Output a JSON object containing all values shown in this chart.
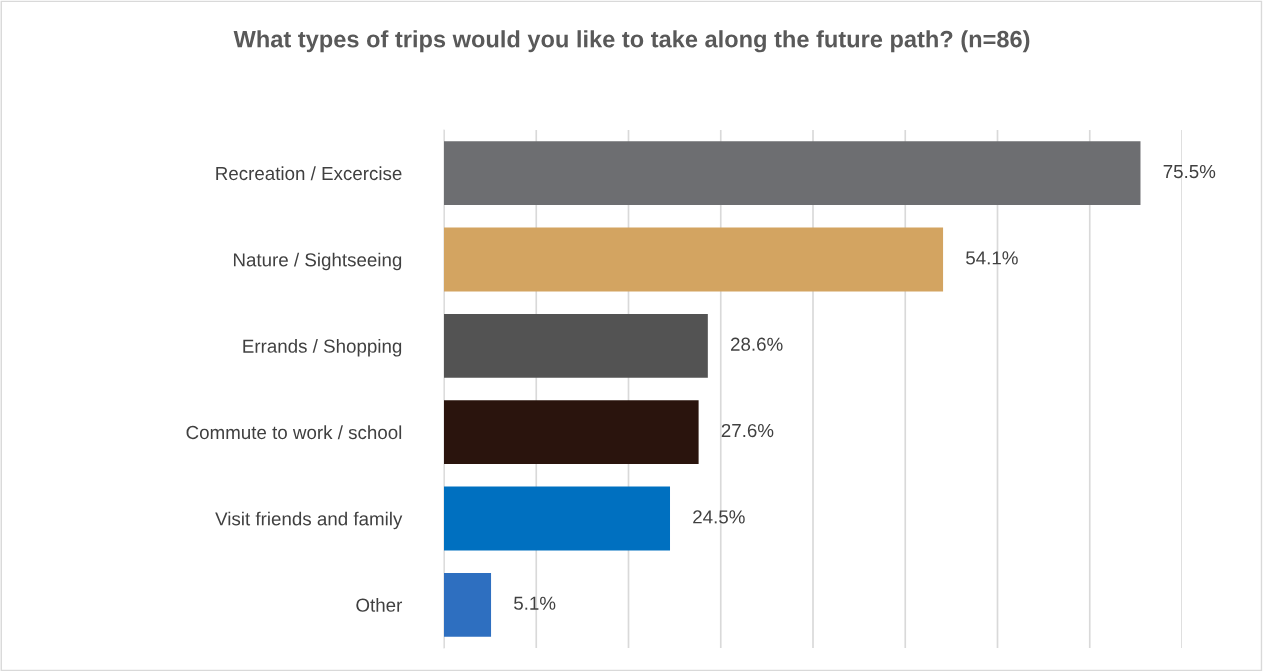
{
  "chart_data": {
    "type": "bar",
    "orientation": "horizontal",
    "title": "What types of trips would you like to take along the future path? (n=86)",
    "categories": [
      "Recreation / Excercise",
      "Nature / Sightseeing",
      "Errands / Shopping",
      "Commute to work / school",
      "Visit friends and family",
      "Other"
    ],
    "values": [
      75.5,
      54.1,
      28.6,
      27.6,
      24.5,
      5.1
    ],
    "colors": [
      "#6d6e71",
      "#d3a461",
      "#535353",
      "#2a140d",
      "#0070c0",
      "#2e6fc0"
    ],
    "value_labels": [
      "75.5%",
      "54.1%",
      "28.6%",
      "27.6%",
      "24.5%",
      "5.1%"
    ],
    "xlim": [
      0,
      80
    ],
    "xticks": [
      {
        "value": 0,
        "label": null
      },
      {
        "value": 10,
        "label": null
      },
      {
        "value": 20,
        "label": null
      },
      {
        "value": 30,
        "label": null
      },
      {
        "value": 40,
        "label": null
      },
      {
        "value": 50,
        "label": null
      },
      {
        "value": 60,
        "label": null
      },
      {
        "value": 70,
        "label": null
      },
      {
        "value": 80,
        "label": null
      }
    ],
    "grid": "x",
    "tick_labels": "y"
  }
}
